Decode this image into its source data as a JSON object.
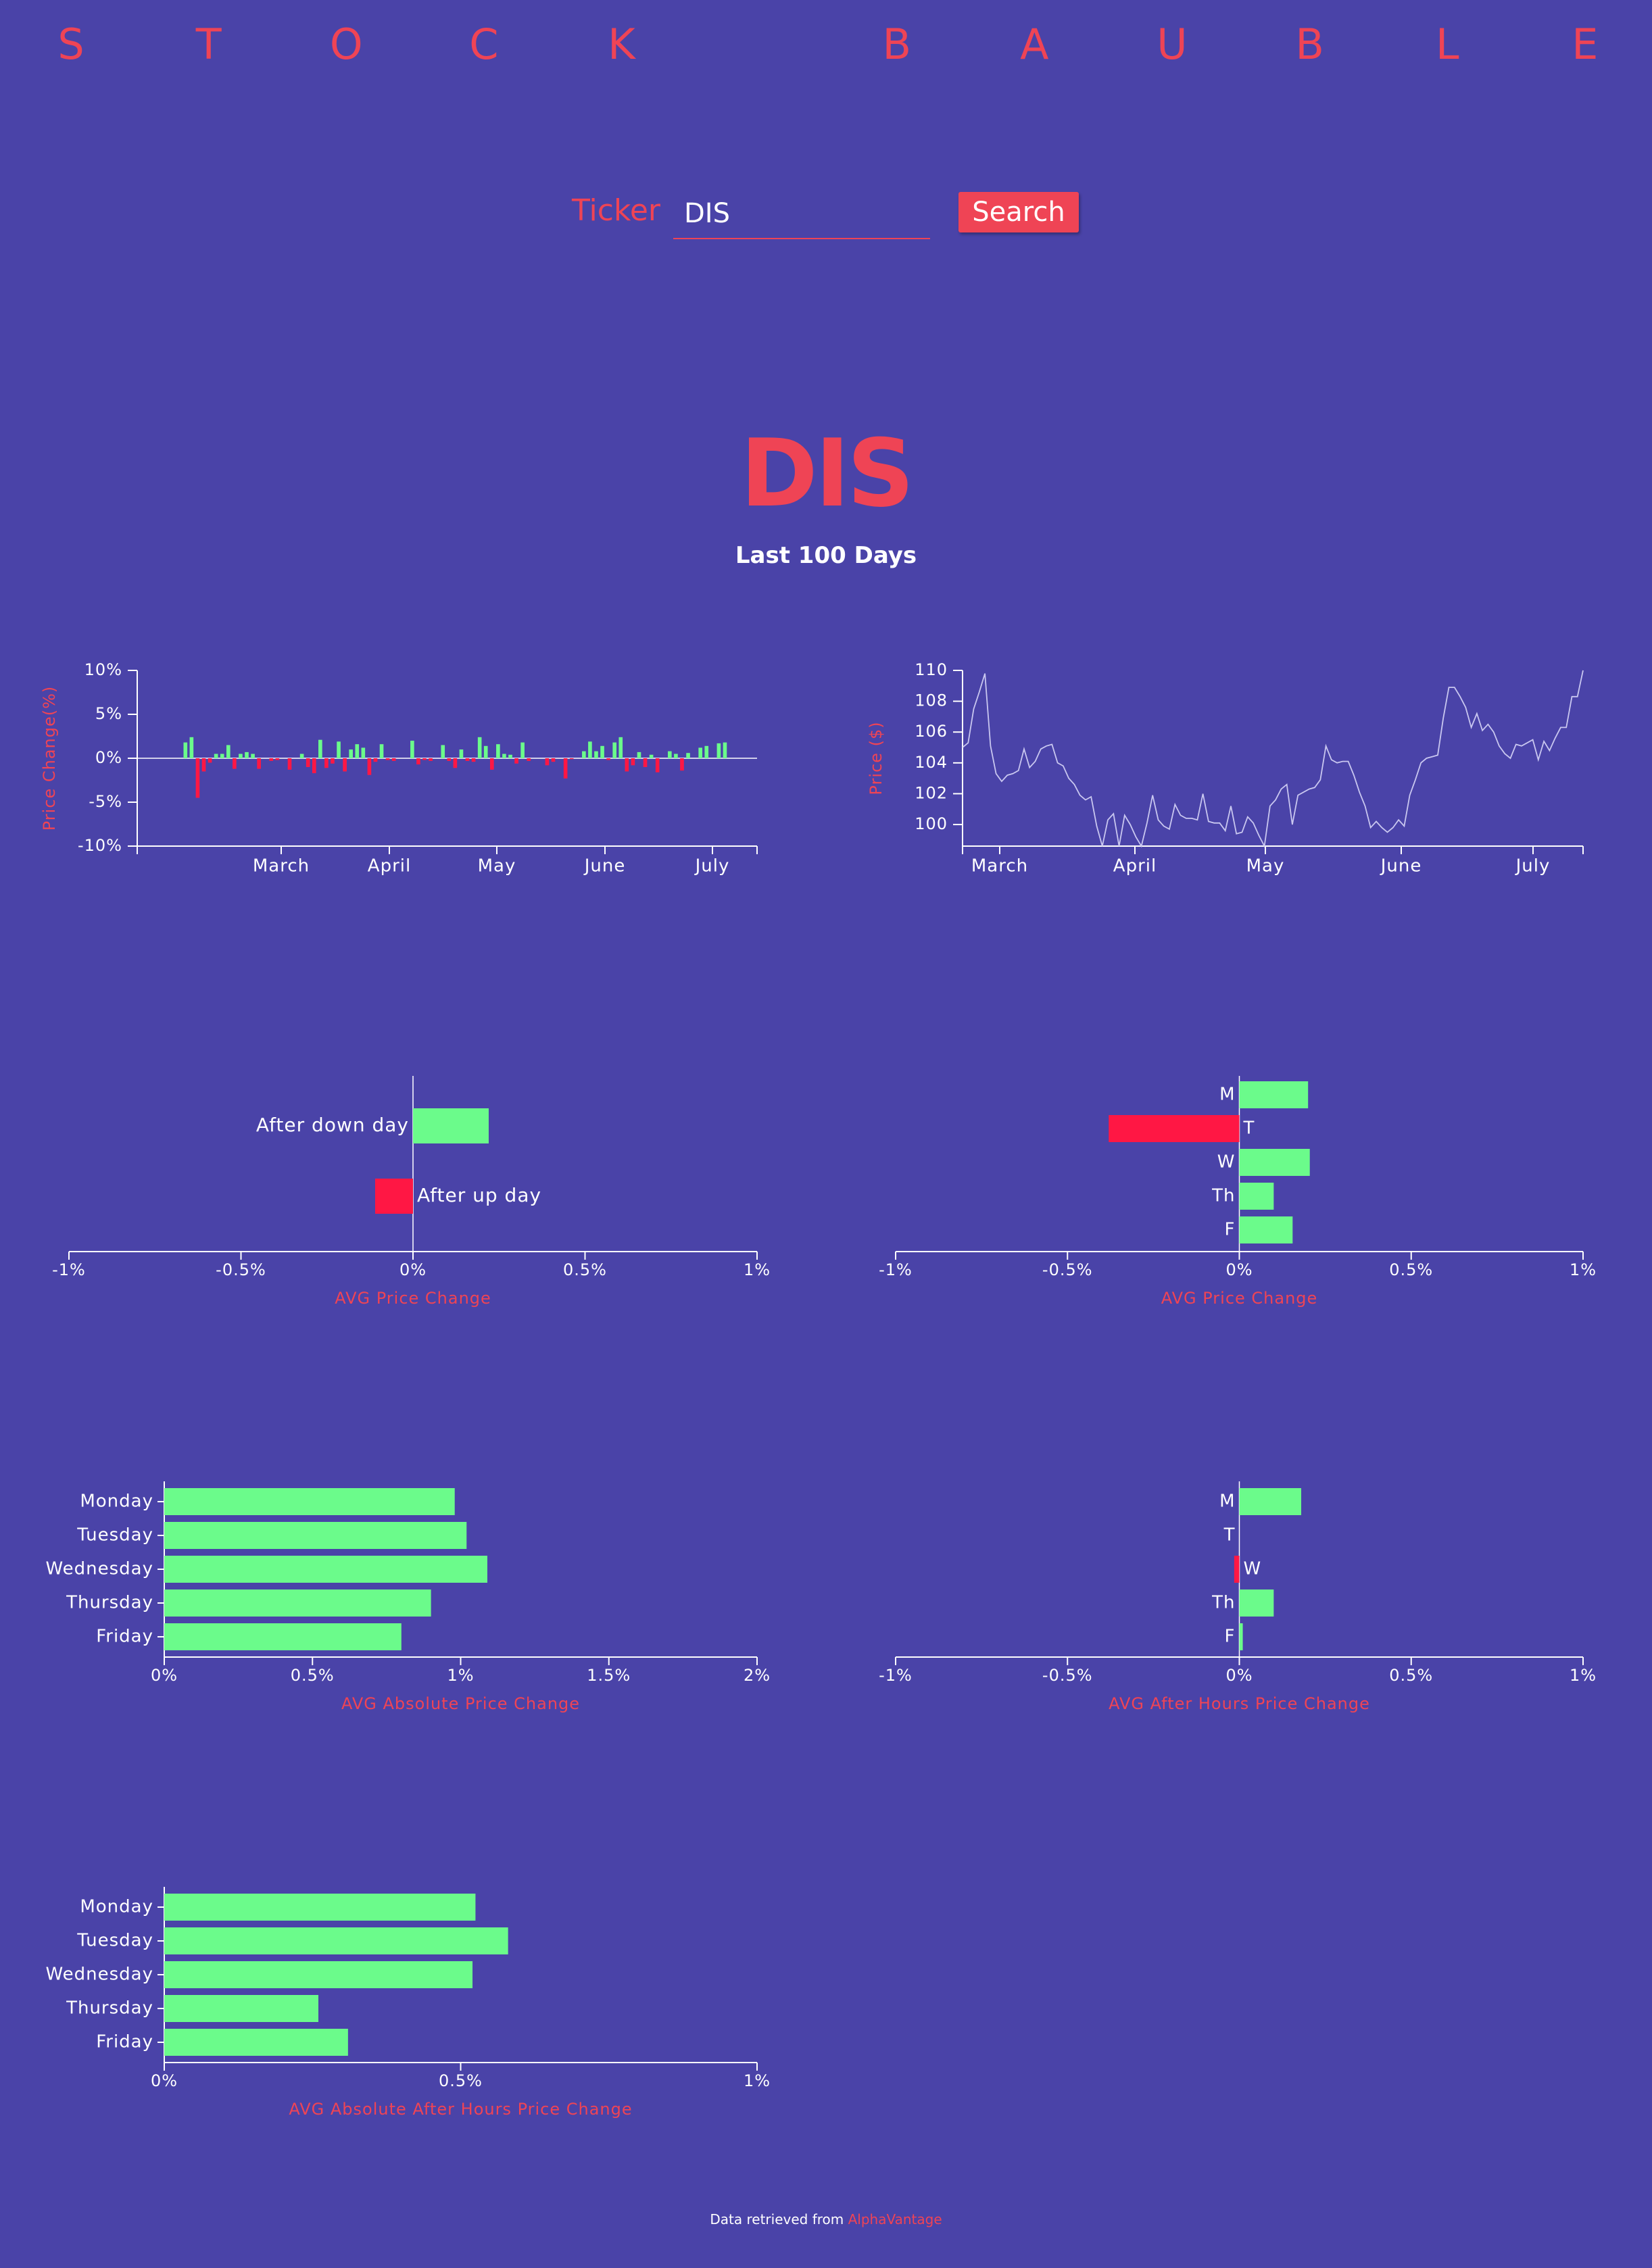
{
  "brand": {
    "letters_left": [
      "S",
      "T",
      "O",
      "C",
      "K"
    ],
    "letters_right": [
      "B",
      "A",
      "U",
      "B",
      "L",
      "E"
    ]
  },
  "search": {
    "label": "Ticker",
    "value": "DIS",
    "button_label": "Search"
  },
  "stock": {
    "symbol": "DIS",
    "subtitle": "Last 100 Days"
  },
  "footer": {
    "text": "Data retrieved from ",
    "link_text": "AlphaVantage"
  },
  "colors": {
    "background": "#4a43a8",
    "accent": "#ef4455",
    "positive": "#6bfb8b",
    "negative": "#ff1744",
    "axis": "#ffffff"
  },
  "chart_data": [
    {
      "id": "daily-change",
      "type": "bar",
      "ylabel": "Price Change(%)",
      "ylim": [
        -10,
        10
      ],
      "yticks": [
        "10%",
        "5%",
        "0%",
        "-5%",
        "-10%"
      ],
      "xticks": [
        "March",
        "April",
        "May",
        "June",
        "July"
      ],
      "values": [
        0.0,
        0.0,
        0.0,
        0.0,
        0.0,
        0.0,
        0.0,
        1.8,
        2.4,
        -4.5,
        -1.5,
        -0.5,
        0.5,
        0.5,
        1.5,
        -1.2,
        0.5,
        0.7,
        0.5,
        -1.2,
        0.0,
        -0.3,
        -0.2,
        0.0,
        -1.3,
        0.0,
        0.5,
        -1.0,
        -1.7,
        2.1,
        -1.1,
        -0.6,
        1.9,
        -1.5,
        1.0,
        1.6,
        1.2,
        -1.9,
        -0.4,
        1.6,
        -0.2,
        -0.3,
        0.0,
        0.0,
        2.0,
        -0.7,
        -0.2,
        -0.3,
        0.0,
        1.5,
        -0.3,
        -1.1,
        1.0,
        -0.3,
        -0.4,
        2.4,
        1.4,
        -1.3,
        1.6,
        0.5,
        0.4,
        -0.6,
        1.8,
        -0.3,
        0.0,
        0.0,
        -0.8,
        -0.4,
        0.0,
        -2.3,
        -0.1,
        0.0,
        0.8,
        1.9,
        0.8,
        1.4,
        -0.2,
        1.8,
        2.4,
        -1.5,
        -0.8,
        0.7,
        -1.0,
        0.4,
        -1.6,
        0.0,
        0.8,
        0.5,
        -1.4,
        0.6,
        0.0,
        1.2,
        1.4,
        0.0,
        1.7,
        1.8,
        0.0,
        0.0,
        0.0,
        0.0
      ]
    },
    {
      "id": "price",
      "type": "line",
      "ylabel": "Price ($)",
      "ylim": [
        98.6,
        110
      ],
      "yticks": [
        "110",
        "108",
        "106",
        "104",
        "102",
        "100"
      ],
      "xticks": [
        "March",
        "April",
        "May",
        "June",
        "July"
      ],
      "values": [
        105.0,
        105.3,
        107.5,
        108.6,
        109.8,
        105.1,
        103.3,
        102.8,
        103.2,
        103.3,
        103.5,
        104.9,
        103.7,
        104.1,
        104.9,
        105.1,
        105.2,
        104.0,
        103.8,
        103.0,
        102.6,
        101.9,
        101.6,
        101.8,
        99.9,
        98.6,
        100.3,
        100.7,
        98.6,
        100.6,
        100.0,
        99.2,
        98.6,
        100.1,
        101.9,
        100.3,
        99.9,
        99.7,
        101.3,
        100.6,
        100.4,
        100.4,
        100.3,
        102.0,
        100.2,
        100.1,
        100.1,
        99.6,
        101.2,
        99.4,
        99.5,
        100.5,
        100.1,
        99.3,
        98.6,
        101.2,
        101.6,
        102.3,
        102.6,
        100.0,
        101.9,
        102.1,
        102.3,
        102.4,
        102.9,
        105.1,
        104.2,
        104.0,
        104.1,
        104.1,
        103.2,
        102.1,
        101.2,
        99.8,
        100.2,
        99.8,
        99.5,
        99.8,
        100.3,
        99.9,
        101.9,
        102.9,
        104.0,
        104.3,
        104.4,
        104.5,
        106.9,
        108.9,
        108.9,
        108.3,
        107.6,
        106.3,
        107.2,
        106.1,
        106.5,
        106.0,
        105.1,
        104.6,
        104.3,
        105.2,
        105.1,
        105.3,
        105.5,
        104.2,
        105.4,
        104.8,
        105.6,
        106.3,
        106.3,
        108.3,
        108.3,
        110.0
      ]
    },
    {
      "id": "after-day",
      "type": "bar",
      "orientation": "horizontal",
      "xlabel": "AVG Price Change",
      "xlim": [
        -1,
        1
      ],
      "xticks": [
        "-1%",
        "-0.5%",
        "0%",
        "0.5%",
        "1%"
      ],
      "categories": [
        "After down day",
        "After up day"
      ],
      "values": [
        0.22,
        -0.11
      ]
    },
    {
      "id": "weekday-change",
      "type": "bar",
      "orientation": "horizontal",
      "xlabel": "AVG Price Change",
      "xlim": [
        -1,
        1
      ],
      "xticks": [
        "-1%",
        "-0.5%",
        "0%",
        "0.5%",
        "1%"
      ],
      "categories": [
        "M",
        "T",
        "W",
        "Th",
        "F"
      ],
      "values": [
        0.2,
        -0.38,
        0.205,
        0.1,
        0.155
      ]
    },
    {
      "id": "weekday-abs",
      "type": "bar",
      "orientation": "horizontal",
      "xlabel": "AVG Absolute Price Change",
      "xlim": [
        0,
        2
      ],
      "xticks": [
        "0%",
        "0.5%",
        "1%",
        "1.5%",
        "2%"
      ],
      "categories": [
        "Monday",
        "Tuesday",
        "Wednesday",
        "Thursday",
        "Friday"
      ],
      "values": [
        0.98,
        1.02,
        1.09,
        0.9,
        0.8
      ]
    },
    {
      "id": "weekday-afterhours",
      "type": "bar",
      "orientation": "horizontal",
      "xlabel": "AVG After Hours Price Change",
      "xlim": [
        -1,
        1
      ],
      "xticks": [
        "-1%",
        "-0.5%",
        "0%",
        "0.5%",
        "1%"
      ],
      "categories": [
        "M",
        "T",
        "W",
        "Th",
        "F"
      ],
      "values": [
        0.18,
        0.0,
        -0.015,
        0.1,
        0.01
      ]
    },
    {
      "id": "weekday-abs-afterhours",
      "type": "bar",
      "orientation": "horizontal",
      "xlabel": "AVG Absolute After Hours Price Change",
      "xlim": [
        0,
        1
      ],
      "xticks": [
        "0%",
        "0.5%",
        "1%"
      ],
      "categories": [
        "Monday",
        "Tuesday",
        "Wednesday",
        "Thursday",
        "Friday"
      ],
      "values": [
        0.525,
        0.58,
        0.52,
        0.26,
        0.31
      ]
    }
  ]
}
